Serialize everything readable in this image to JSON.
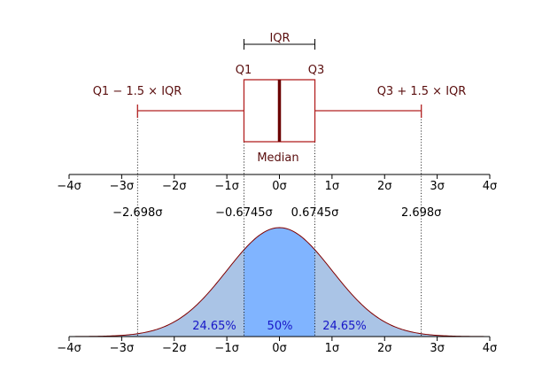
{
  "labels": {
    "iqr": "IQR",
    "q1": "Q1",
    "q3": "Q3",
    "lower_fence": "Q1 − 1.5 × IQR",
    "upper_fence": "Q3 + 1.5 × IQR",
    "median": "Median"
  },
  "axis_ticks": [
    "−4σ",
    "−3σ",
    "−2σ",
    "−1σ",
    "0σ",
    "1σ",
    "2σ",
    "3σ",
    "4σ"
  ],
  "marker_labels": [
    "−2.698σ",
    "−0.6745σ",
    "0.6745σ",
    "2.698σ"
  ],
  "percent_labels": [
    "24.65%",
    "50%",
    "24.65%"
  ],
  "stats": {
    "q1": -0.6745,
    "median": 0,
    "q3": 0.6745,
    "lower_whisker": -2.698,
    "upper_whisker": 2.698,
    "x_range": [
      -4,
      4
    ]
  },
  "colors": {
    "box": "#b22222",
    "median_line": "#6b0000",
    "whisker": "#b22222",
    "bracket": "#000000",
    "curve": "#800000",
    "tail_fill": "#aac4e6",
    "center_fill": "#80b4ff",
    "percent_text": "#1717c8",
    "label_text": "#5a0e0e",
    "axis": "#000000"
  }
}
